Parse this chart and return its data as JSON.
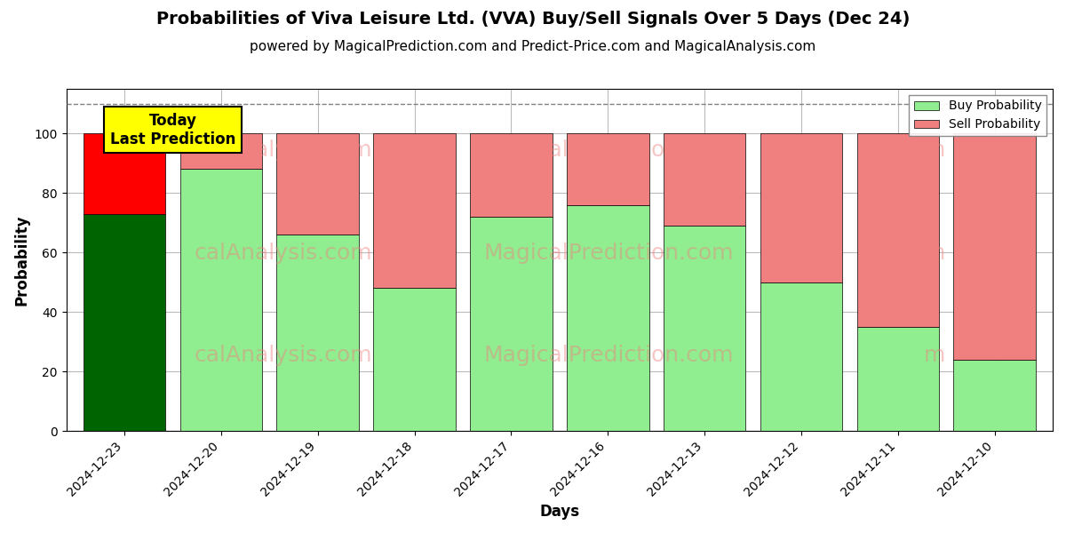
{
  "title": "Probabilities of Viva Leisure Ltd. (VVA) Buy/Sell Signals Over 5 Days (Dec 24)",
  "subtitle": "powered by MagicalPrediction.com and Predict-Price.com and MagicalAnalysis.com",
  "xlabel": "Days",
  "ylabel": "Probability",
  "dashed_line_y": 110,
  "ylim": [
    0,
    115
  ],
  "yticks": [
    0,
    20,
    40,
    60,
    80,
    100
  ],
  "categories": [
    "2024-12-23",
    "2024-12-20",
    "2024-12-19",
    "2024-12-18",
    "2024-12-17",
    "2024-12-16",
    "2024-12-13",
    "2024-12-12",
    "2024-12-11",
    "2024-12-10"
  ],
  "buy_values": [
    73,
    88,
    66,
    48,
    72,
    76,
    69,
    50,
    35,
    24
  ],
  "sell_values": [
    27,
    12,
    34,
    52,
    28,
    24,
    31,
    50,
    65,
    76
  ],
  "today_bar_buy_color": "#006400",
  "today_bar_sell_color": "#FF0000",
  "other_bar_buy_color": "#90EE90",
  "other_bar_sell_color": "#F08080",
  "legend_buy_color": "#90EE90",
  "legend_sell_color": "#F08080",
  "today_label": "Today\nLast Prediction",
  "today_label_bg": "#FFFF00",
  "background_color": "#ffffff",
  "grid_color": "#bbbbbb",
  "bar_width": 0.85,
  "title_fontsize": 14,
  "subtitle_fontsize": 11,
  "axis_label_fontsize": 12,
  "tick_fontsize": 10,
  "watermark1": "calAnalysis.com",
  "watermark2": "MagicalPrediction.com",
  "watermark3": "calAnalysis.com",
  "watermark4": "MagicalPrediction.com",
  "watermark5": "calAnalysis.com",
  "watermark_color": "#F08080",
  "watermark_alpha": 0.45
}
